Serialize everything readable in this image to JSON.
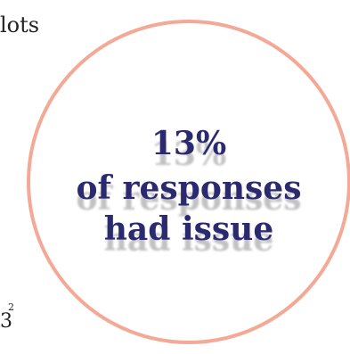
{
  "cropped": {
    "top_text": "lots",
    "bottom_mark": "3",
    "bottom_sup": "2"
  },
  "callout": {
    "percent": "13%",
    "line1": "of responses",
    "line2": "had issue"
  },
  "colors": {
    "ring": "#f4a896",
    "text": "#2b2a6e"
  }
}
